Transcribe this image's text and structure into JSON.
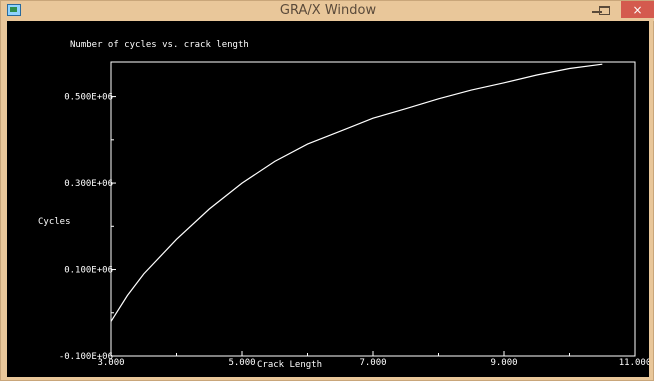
{
  "window": {
    "title": "GRA/X Window",
    "close_symbol": "×",
    "icons": {
      "app": "app-window-icon",
      "minimize": "minimize-icon",
      "maximize": "maximize-icon",
      "close": "close-icon"
    }
  },
  "chart_data": {
    "type": "line",
    "title": "Number of cycles vs. crack length",
    "xlabel": "Crack Length",
    "ylabel": "Cycles",
    "xlim": [
      3.0,
      11.0
    ],
    "ylim": [
      -100000,
      580000
    ],
    "x_ticks": [
      {
        "value": 3.0,
        "label": "3.000"
      },
      {
        "value": 5.0,
        "label": "5.000"
      },
      {
        "value": 7.0,
        "label": "7.000"
      },
      {
        "value": 9.0,
        "label": "9.000"
      },
      {
        "value": 11.0,
        "label": "11.000"
      }
    ],
    "y_ticks": [
      {
        "value": -100000,
        "label": "-0.100E+06"
      },
      {
        "value": 100000,
        "label": "0.100E+06"
      },
      {
        "value": 300000,
        "label": "0.300E+06"
      },
      {
        "value": 500000,
        "label": "0.500E+06"
      }
    ],
    "grid": false,
    "series": [
      {
        "x": [
          3.0,
          3.25,
          3.5,
          4.0,
          4.5,
          5.0,
          5.5,
          6.0,
          6.5,
          7.0,
          7.5,
          8.0,
          8.5,
          9.0,
          9.5,
          10.0,
          10.5
        ],
        "y": [
          -20000,
          40000,
          90000,
          170000,
          240000,
          300000,
          350000,
          390000,
          420000,
          450000,
          472000,
          495000,
          515000,
          532000,
          550000,
          565000,
          575000
        ]
      }
    ],
    "line_color": "#ffffff"
  }
}
